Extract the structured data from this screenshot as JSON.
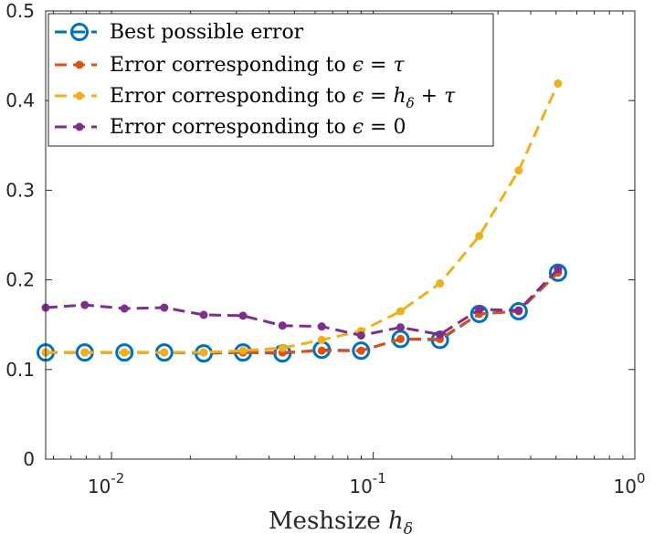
{
  "chart_data": {
    "type": "line",
    "title": "",
    "xlabel": "Meshsize h_δ",
    "xlabel_text": "Meshsize",
    "xlabel_symbol": "h",
    "xlabel_subscript": "δ",
    "ylabel": "",
    "xscale": "log",
    "xlim": [
      0.0056,
      1.0
    ],
    "ylim": [
      0,
      0.5
    ],
    "x_ticks": [
      0.01,
      0.1,
      1
    ],
    "x_tick_labels": [
      {
        "base": "10",
        "exp": "-2"
      },
      {
        "base": "10",
        "exp": "-1"
      },
      {
        "base": "10",
        "exp": "0"
      }
    ],
    "y_ticks": [
      0,
      0.1,
      0.2,
      0.3,
      0.4,
      0.5
    ],
    "y_tick_labels": [
      "0",
      "0.1",
      "0.2",
      "0.3",
      "0.4",
      "0.5"
    ],
    "legend_position": "top-left",
    "x": [
      0.0056,
      0.0079,
      0.0112,
      0.0159,
      0.0225,
      0.0318,
      0.045,
      0.0636,
      0.0899,
      0.1272,
      0.1799,
      0.2544,
      0.3598,
      0.5088
    ],
    "series": [
      {
        "name": "Best possible error",
        "legend_label": "Best possible error",
        "color": "#0072BD",
        "marker": "open-circle",
        "values": [
          0.119,
          0.119,
          0.119,
          0.119,
          0.118,
          0.119,
          0.118,
          0.122,
          0.121,
          0.134,
          0.133,
          0.162,
          0.165,
          0.208
        ]
      },
      {
        "name": "Error corresponding to ϵ = τ",
        "legend_label": "Error corresponding to ϵ = τ",
        "color": "#D95319",
        "marker": "dot",
        "values": [
          0.119,
          0.119,
          0.119,
          0.119,
          0.119,
          0.119,
          0.119,
          0.121,
          0.121,
          0.134,
          0.134,
          0.162,
          0.165,
          0.208
        ]
      },
      {
        "name": "Error corresponding to ϵ = h_δ + τ",
        "legend_label": "Error corresponding to ϵ = h_δ + τ",
        "color": "#EDB120",
        "marker": "dot",
        "values": [
          0.119,
          0.119,
          0.119,
          0.119,
          0.119,
          0.121,
          0.124,
          0.133,
          0.143,
          0.165,
          0.196,
          0.249,
          0.322,
          0.419
        ]
      },
      {
        "name": "Error corresponding to ϵ = 0",
        "legend_label": "Error corresponding to ϵ = 0",
        "color": "#7E2F8E",
        "marker": "dot",
        "values": [
          0.169,
          0.172,
          0.168,
          0.169,
          0.161,
          0.16,
          0.149,
          0.148,
          0.138,
          0.147,
          0.139,
          0.167,
          0.166,
          0.212
        ]
      }
    ]
  }
}
